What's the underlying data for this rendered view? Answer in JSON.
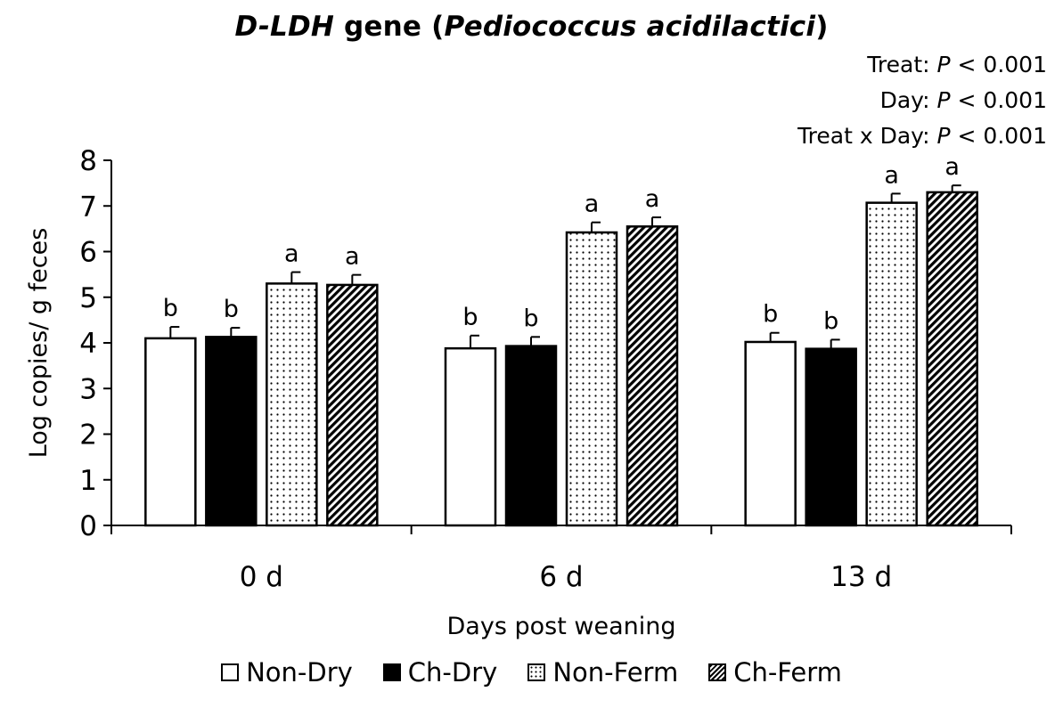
{
  "title": {
    "italic_part": "D-LDH",
    "normal_part": " gene (",
    "italic_species": "Pediococcus  acidilactici",
    "close": ")"
  },
  "stats": [
    {
      "label": "Treat: ",
      "p": "P",
      "value": " < 0.001"
    },
    {
      "label": "Day: ",
      "p": "P",
      "value": " < 0.001"
    },
    {
      "label": "Treat x Day: ",
      "p": "P",
      "value": " < 0.001"
    }
  ],
  "chart_data": {
    "type": "bar",
    "title": "D-LDH gene (Pediococcus acidilactici)",
    "xlabel": "Days post weaning",
    "ylabel": "Log copies/ g feces",
    "ylim": [
      0,
      8
    ],
    "yticks": [
      "0",
      "1",
      "2",
      "3",
      "4",
      "5",
      "6",
      "7",
      "8"
    ],
    "categories": [
      "0 d",
      "6 d",
      "13 d"
    ],
    "series": [
      {
        "name": "Non-Dry",
        "pattern": "white",
        "values": [
          4.1,
          3.88,
          4.02
        ],
        "errors": [
          0.25,
          0.28,
          0.2
        ],
        "letters": [
          "b",
          "b",
          "b"
        ]
      },
      {
        "name": "Ch-Dry",
        "pattern": "black",
        "values": [
          4.13,
          3.93,
          3.87
        ],
        "errors": [
          0.2,
          0.2,
          0.2
        ],
        "letters": [
          "b",
          "b",
          "b"
        ]
      },
      {
        "name": "Non-Ferm",
        "pattern": "dots",
        "values": [
          5.3,
          6.42,
          7.07
        ],
        "errors": [
          0.25,
          0.22,
          0.2
        ],
        "letters": [
          "a",
          "a",
          "a"
        ]
      },
      {
        "name": "Ch-Ferm",
        "pattern": "hatch",
        "values": [
          5.27,
          6.55,
          7.3
        ],
        "errors": [
          0.22,
          0.2,
          0.15
        ],
        "letters": [
          "a",
          "a",
          "a"
        ]
      }
    ]
  }
}
